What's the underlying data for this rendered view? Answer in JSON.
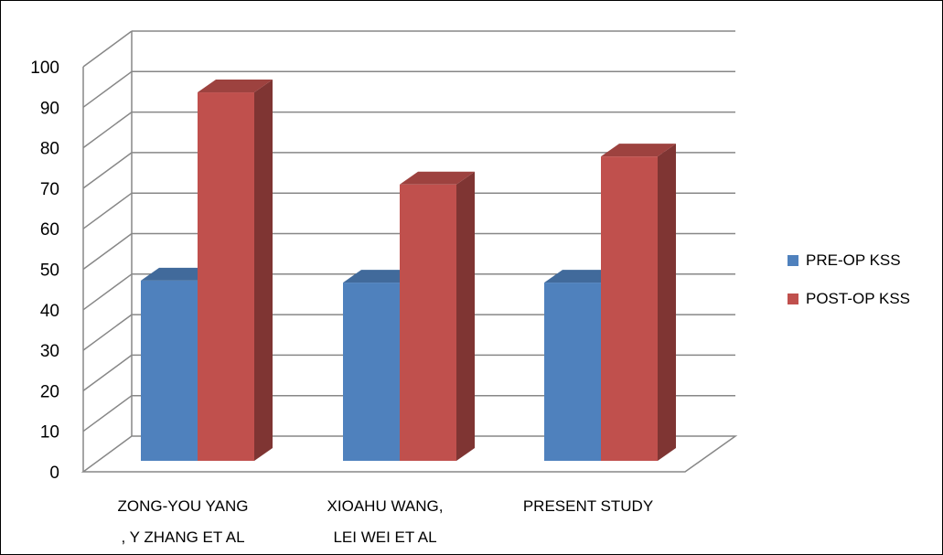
{
  "chart_data": {
    "type": "bar",
    "categories": [
      [
        "ZONG-YOU YANG",
        ", Y ZHANG ET AL"
      ],
      [
        "XIOAHU WANG,",
        "LEI WEI ET AL"
      ],
      [
        "PRESENT STUDY"
      ]
    ],
    "series": [
      {
        "name": "PRE-OP KSS",
        "values": [
          45,
          44.5,
          44.5
        ],
        "color": "#4F81BD"
      },
      {
        "name": "POST-OP KSS",
        "values": [
          92,
          69,
          76
        ],
        "color": "#C0504D"
      }
    ],
    "yticks": [
      0,
      10,
      20,
      30,
      40,
      50,
      60,
      70,
      80,
      90,
      100
    ],
    "ylim": [
      0,
      100
    ],
    "grid": true,
    "style": "3d-clustered-column",
    "legend_position": "right"
  }
}
